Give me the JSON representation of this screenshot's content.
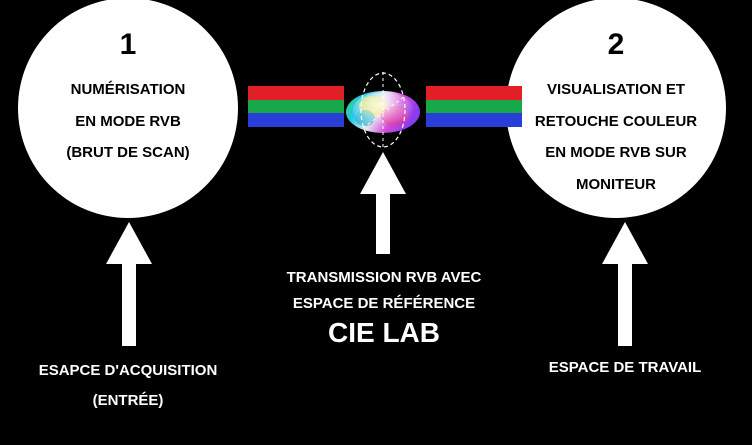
{
  "circle1": {
    "number": "1",
    "lines": [
      "NUMÉRISATION",
      "EN MODE RVB",
      "(BRUT DE SCAN)"
    ]
  },
  "circle2": {
    "number": "2",
    "lines": [
      "VISUALISATION ET",
      "RETOUCHE COULEUR",
      "EN MODE RVB SUR",
      "MONITEUR"
    ]
  },
  "center": {
    "lines": [
      "TRANSMISSION RVB AVEC",
      "ESPACE DE RÉFÉRENCE"
    ],
    "title": "CIE LAB"
  },
  "left_label": {
    "lines": [
      "ESAPCE D'ACQUISITION",
      "(ENTRÉE)"
    ]
  },
  "right_label": {
    "lines": [
      "ESPACE DE TRAVAIL"
    ]
  },
  "colors": {
    "background": "#000000",
    "red": "#e21e26",
    "green": "#17a84a",
    "blue": "#2b3fd8",
    "circle": "#ffffff"
  }
}
